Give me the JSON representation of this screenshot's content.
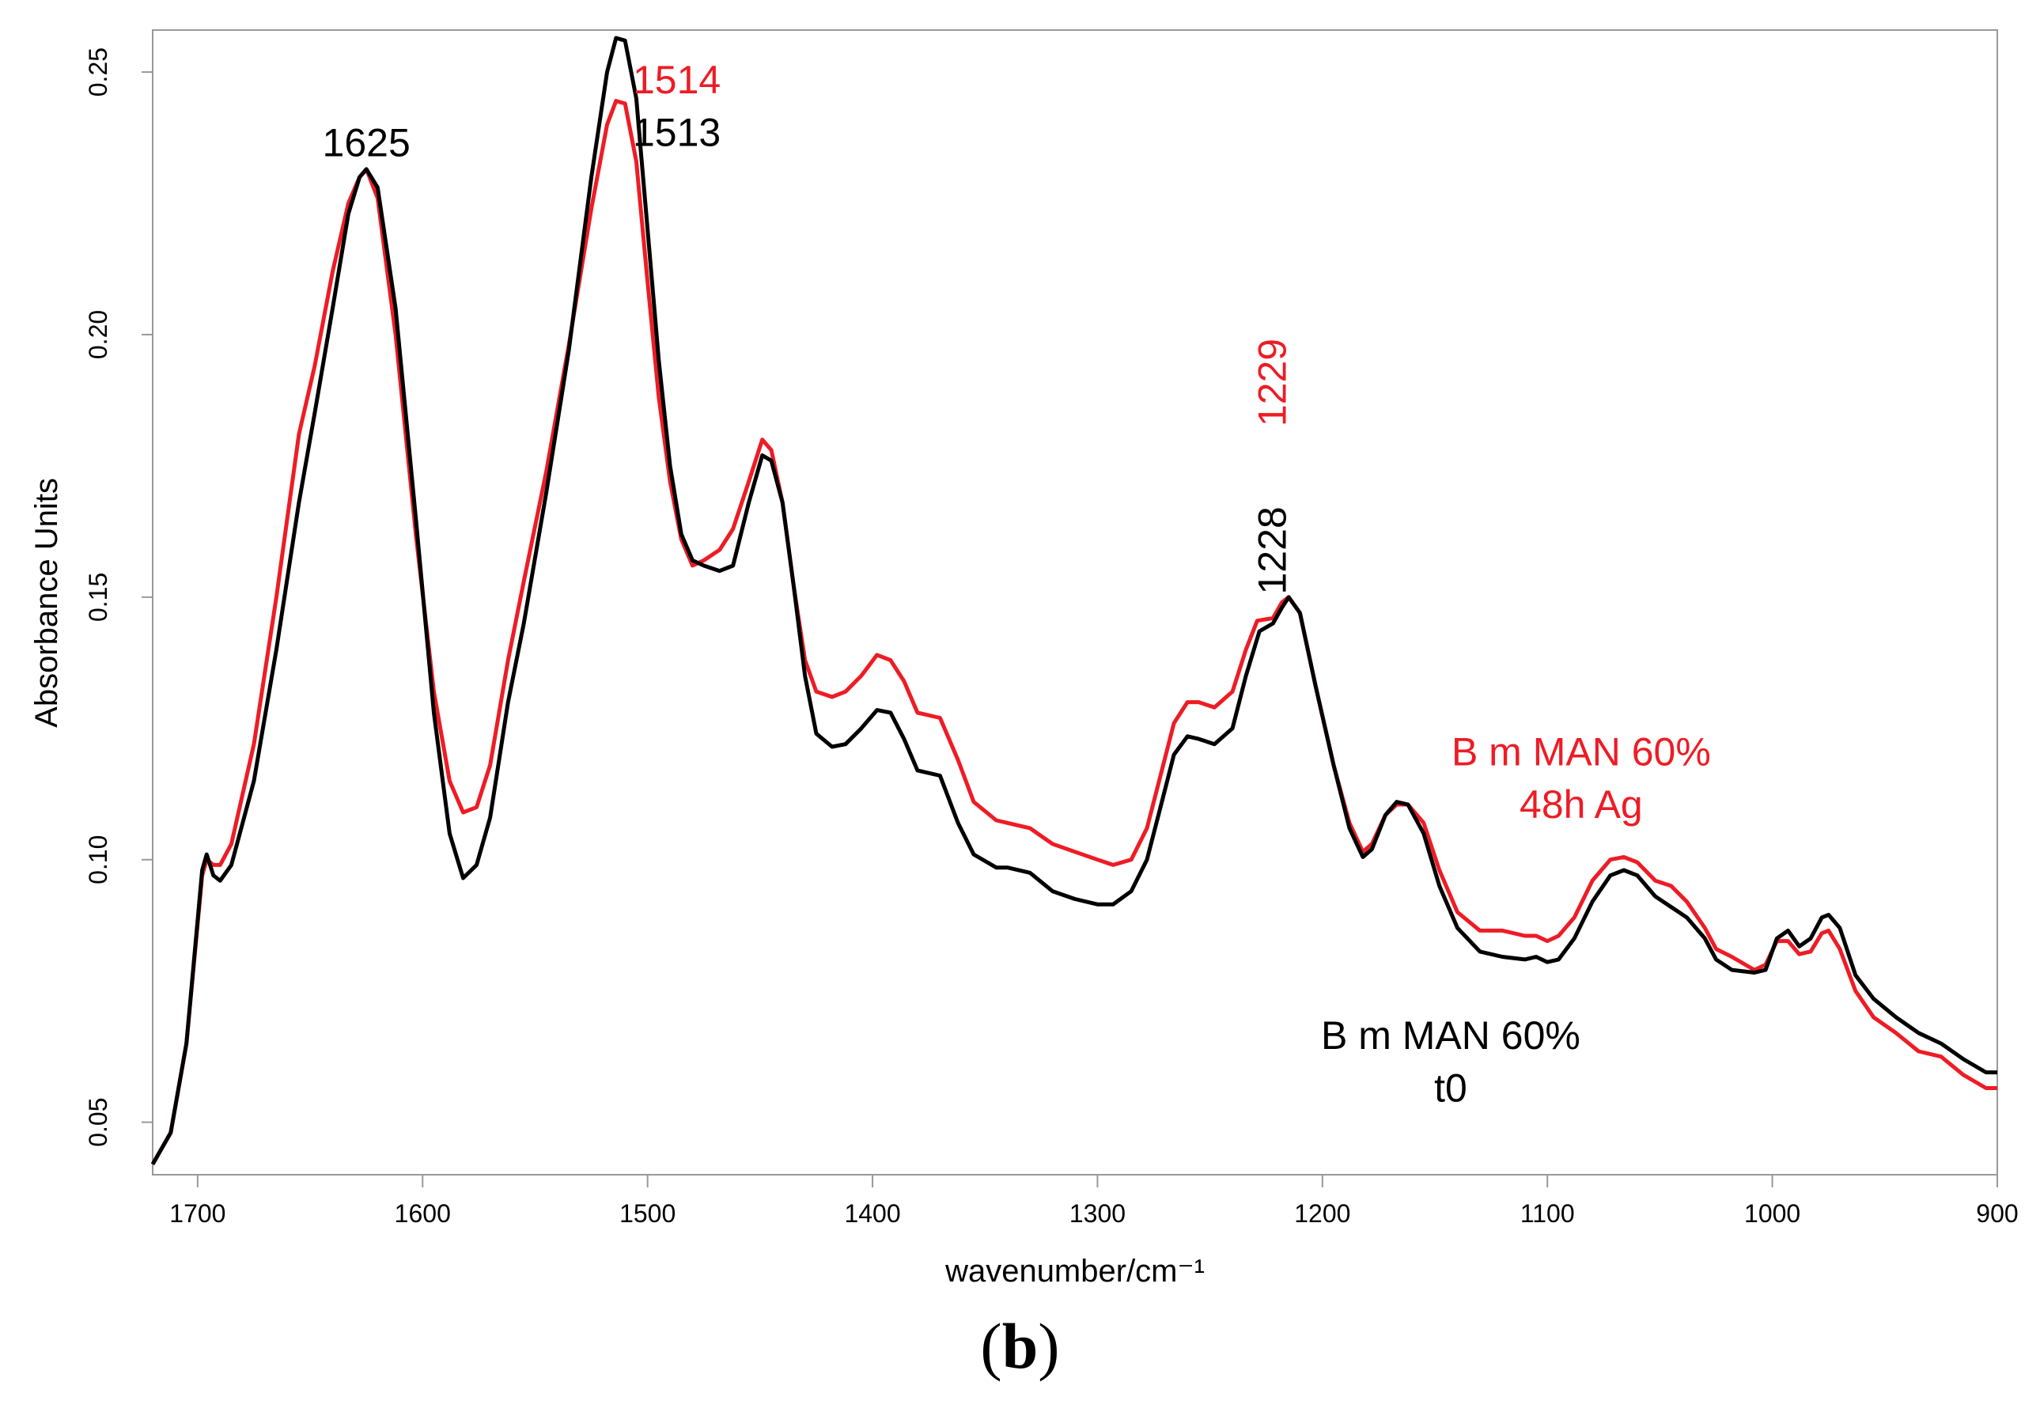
{
  "panel_label": {
    "open": "(",
    "letter": "b",
    "close": ")"
  },
  "chart_data": {
    "type": "line",
    "title": "",
    "xlabel": "wavenumber/cm⁻¹",
    "ylabel": "Absorbance Units",
    "xlim": [
      1720,
      900
    ],
    "ylim": [
      0.04,
      0.258
    ],
    "xticks": [
      1700,
      1600,
      1500,
      1400,
      1300,
      1200,
      1100,
      1000,
      900
    ],
    "yticks": [
      0.05,
      0.1,
      0.15,
      0.2,
      0.25
    ],
    "ytick_labels": [
      "0.05",
      "0.10",
      "0.15",
      "0.20",
      "0.25"
    ],
    "grid": false,
    "series": [
      {
        "name": "B m MAN 60% t0",
        "color": "#000000",
        "points": [
          [
            1720,
            0.042
          ],
          [
            1712,
            0.048
          ],
          [
            1705,
            0.065
          ],
          [
            1698,
            0.098
          ],
          [
            1696,
            0.101
          ],
          [
            1693,
            0.097
          ],
          [
            1690,
            0.096
          ],
          [
            1685,
            0.099
          ],
          [
            1675,
            0.115
          ],
          [
            1665,
            0.14
          ],
          [
            1655,
            0.168
          ],
          [
            1648,
            0.185
          ],
          [
            1640,
            0.205
          ],
          [
            1633,
            0.223
          ],
          [
            1628,
            0.23
          ],
          [
            1625,
            0.2315
          ],
          [
            1620,
            0.228
          ],
          [
            1612,
            0.205
          ],
          [
            1603,
            0.165
          ],
          [
            1595,
            0.128
          ],
          [
            1588,
            0.105
          ],
          [
            1582,
            0.0965
          ],
          [
            1576,
            0.099
          ],
          [
            1570,
            0.108
          ],
          [
            1562,
            0.13
          ],
          [
            1555,
            0.145
          ],
          [
            1545,
            0.17
          ],
          [
            1535,
            0.197
          ],
          [
            1525,
            0.23
          ],
          [
            1518,
            0.25
          ],
          [
            1514,
            0.2565
          ],
          [
            1510,
            0.256
          ],
          [
            1505,
            0.245
          ],
          [
            1500,
            0.22
          ],
          [
            1495,
            0.195
          ],
          [
            1490,
            0.175
          ],
          [
            1485,
            0.162
          ],
          [
            1480,
            0.157
          ],
          [
            1475,
            0.156
          ],
          [
            1468,
            0.155
          ],
          [
            1462,
            0.156
          ],
          [
            1455,
            0.168
          ],
          [
            1449,
            0.177
          ],
          [
            1445,
            0.176
          ],
          [
            1440,
            0.168
          ],
          [
            1435,
            0.152
          ],
          [
            1430,
            0.135
          ],
          [
            1425,
            0.124
          ],
          [
            1418,
            0.1215
          ],
          [
            1412,
            0.122
          ],
          [
            1405,
            0.125
          ],
          [
            1398,
            0.1285
          ],
          [
            1392,
            0.128
          ],
          [
            1386,
            0.123
          ],
          [
            1380,
            0.117
          ],
          [
            1370,
            0.116
          ],
          [
            1362,
            0.107
          ],
          [
            1355,
            0.101
          ],
          [
            1345,
            0.0985
          ],
          [
            1340,
            0.0985
          ],
          [
            1330,
            0.0975
          ],
          [
            1320,
            0.094
          ],
          [
            1310,
            0.0925
          ],
          [
            1300,
            0.0915
          ],
          [
            1293,
            0.0915
          ],
          [
            1285,
            0.094
          ],
          [
            1278,
            0.1
          ],
          [
            1272,
            0.11
          ],
          [
            1266,
            0.12
          ],
          [
            1260,
            0.1235
          ],
          [
            1255,
            0.123
          ],
          [
            1248,
            0.122
          ],
          [
            1240,
            0.125
          ],
          [
            1234,
            0.135
          ],
          [
            1228,
            0.1435
          ],
          [
            1222,
            0.145
          ],
          [
            1218,
            0.148
          ],
          [
            1215,
            0.15
          ],
          [
            1210,
            0.147
          ],
          [
            1203,
            0.133
          ],
          [
            1195,
            0.118
          ],
          [
            1188,
            0.106
          ],
          [
            1182,
            0.1005
          ],
          [
            1178,
            0.102
          ],
          [
            1172,
            0.1085
          ],
          [
            1167,
            0.111
          ],
          [
            1162,
            0.1105
          ],
          [
            1155,
            0.105
          ],
          [
            1148,
            0.095
          ],
          [
            1140,
            0.087
          ],
          [
            1130,
            0.0825
          ],
          [
            1120,
            0.0815
          ],
          [
            1110,
            0.081
          ],
          [
            1105,
            0.0815
          ],
          [
            1100,
            0.0805
          ],
          [
            1095,
            0.081
          ],
          [
            1088,
            0.085
          ],
          [
            1080,
            0.092
          ],
          [
            1072,
            0.097
          ],
          [
            1066,
            0.098
          ],
          [
            1060,
            0.097
          ],
          [
            1052,
            0.093
          ],
          [
            1045,
            0.091
          ],
          [
            1038,
            0.089
          ],
          [
            1030,
            0.085
          ],
          [
            1025,
            0.081
          ],
          [
            1018,
            0.079
          ],
          [
            1008,
            0.0785
          ],
          [
            1003,
            0.079
          ],
          [
            998,
            0.085
          ],
          [
            993,
            0.0865
          ],
          [
            988,
            0.0835
          ],
          [
            983,
            0.085
          ],
          [
            978,
            0.089
          ],
          [
            975,
            0.0895
          ],
          [
            970,
            0.087
          ],
          [
            963,
            0.078
          ],
          [
            955,
            0.0735
          ],
          [
            945,
            0.07
          ],
          [
            935,
            0.067
          ],
          [
            925,
            0.065
          ],
          [
            915,
            0.062
          ],
          [
            905,
            0.0595
          ],
          [
            900,
            0.0595
          ]
        ]
      },
      {
        "name": "B m MAN 60% 48h Ag",
        "color": "#ee1c25",
        "points": [
          [
            1720,
            0.042
          ],
          [
            1712,
            0.048
          ],
          [
            1705,
            0.065
          ],
          [
            1698,
            0.097
          ],
          [
            1696,
            0.1
          ],
          [
            1693,
            0.099
          ],
          [
            1690,
            0.099
          ],
          [
            1685,
            0.103
          ],
          [
            1675,
            0.122
          ],
          [
            1665,
            0.15
          ],
          [
            1655,
            0.181
          ],
          [
            1648,
            0.194
          ],
          [
            1640,
            0.212
          ],
          [
            1633,
            0.225
          ],
          [
            1628,
            0.23
          ],
          [
            1625,
            0.2315
          ],
          [
            1620,
            0.226
          ],
          [
            1612,
            0.2
          ],
          [
            1603,
            0.162
          ],
          [
            1595,
            0.132
          ],
          [
            1588,
            0.115
          ],
          [
            1582,
            0.109
          ],
          [
            1576,
            0.11
          ],
          [
            1570,
            0.118
          ],
          [
            1562,
            0.138
          ],
          [
            1555,
            0.153
          ],
          [
            1545,
            0.174
          ],
          [
            1535,
            0.198
          ],
          [
            1525,
            0.224
          ],
          [
            1518,
            0.24
          ],
          [
            1514,
            0.2445
          ],
          [
            1510,
            0.244
          ],
          [
            1505,
            0.233
          ],
          [
            1500,
            0.21
          ],
          [
            1495,
            0.188
          ],
          [
            1490,
            0.172
          ],
          [
            1485,
            0.161
          ],
          [
            1480,
            0.156
          ],
          [
            1475,
            0.157
          ],
          [
            1468,
            0.159
          ],
          [
            1462,
            0.163
          ],
          [
            1455,
            0.172
          ],
          [
            1449,
            0.18
          ],
          [
            1445,
            0.178
          ],
          [
            1440,
            0.168
          ],
          [
            1435,
            0.152
          ],
          [
            1430,
            0.138
          ],
          [
            1425,
            0.132
          ],
          [
            1418,
            0.131
          ],
          [
            1412,
            0.132
          ],
          [
            1405,
            0.135
          ],
          [
            1398,
            0.139
          ],
          [
            1392,
            0.138
          ],
          [
            1386,
            0.134
          ],
          [
            1380,
            0.128
          ],
          [
            1370,
            0.127
          ],
          [
            1362,
            0.119
          ],
          [
            1355,
            0.111
          ],
          [
            1345,
            0.1075
          ],
          [
            1340,
            0.107
          ],
          [
            1330,
            0.106
          ],
          [
            1320,
            0.103
          ],
          [
            1310,
            0.1015
          ],
          [
            1300,
            0.1
          ],
          [
            1293,
            0.099
          ],
          [
            1285,
            0.1
          ],
          [
            1278,
            0.106
          ],
          [
            1272,
            0.116
          ],
          [
            1266,
            0.126
          ],
          [
            1260,
            0.13
          ],
          [
            1255,
            0.13
          ],
          [
            1248,
            0.129
          ],
          [
            1240,
            0.132
          ],
          [
            1234,
            0.14
          ],
          [
            1229,
            0.1455
          ],
          [
            1222,
            0.146
          ],
          [
            1218,
            0.149
          ],
          [
            1215,
            0.15
          ],
          [
            1210,
            0.147
          ],
          [
            1203,
            0.133
          ],
          [
            1195,
            0.118
          ],
          [
            1188,
            0.107
          ],
          [
            1182,
            0.1015
          ],
          [
            1178,
            0.103
          ],
          [
            1172,
            0.1085
          ],
          [
            1167,
            0.1105
          ],
          [
            1162,
            0.1105
          ],
          [
            1155,
            0.107
          ],
          [
            1148,
            0.098
          ],
          [
            1140,
            0.09
          ],
          [
            1130,
            0.0865
          ],
          [
            1120,
            0.0865
          ],
          [
            1110,
            0.0855
          ],
          [
            1105,
            0.0855
          ],
          [
            1100,
            0.0845
          ],
          [
            1095,
            0.0855
          ],
          [
            1088,
            0.089
          ],
          [
            1080,
            0.096
          ],
          [
            1072,
            0.1
          ],
          [
            1066,
            0.1005
          ],
          [
            1060,
            0.0995
          ],
          [
            1052,
            0.096
          ],
          [
            1045,
            0.095
          ],
          [
            1038,
            0.092
          ],
          [
            1030,
            0.087
          ],
          [
            1025,
            0.083
          ],
          [
            1018,
            0.0815
          ],
          [
            1008,
            0.079
          ],
          [
            1003,
            0.08
          ],
          [
            998,
            0.0845
          ],
          [
            993,
            0.0845
          ],
          [
            988,
            0.082
          ],
          [
            983,
            0.0825
          ],
          [
            978,
            0.086
          ],
          [
            975,
            0.0865
          ],
          [
            970,
            0.083
          ],
          [
            963,
            0.075
          ],
          [
            955,
            0.07
          ],
          [
            945,
            0.067
          ],
          [
            935,
            0.0635
          ],
          [
            925,
            0.0625
          ],
          [
            915,
            0.059
          ],
          [
            905,
            0.0565
          ],
          [
            900,
            0.0565
          ]
        ]
      }
    ],
    "annotations": [
      {
        "id": "ann-1625",
        "text": "1625",
        "color": "#000000",
        "x": 1625,
        "y": 0.2365,
        "rotate": false
      },
      {
        "id": "ann-1514",
        "text": "1514",
        "color": "#ee1c25",
        "x": 1487,
        "y": 0.2485,
        "rotate": false
      },
      {
        "id": "ann-1513",
        "text": "1513",
        "color": "#000000",
        "x": 1487,
        "y": 0.2385,
        "rotate": false
      },
      {
        "id": "ann-1228",
        "text": "1228",
        "color": "#000000",
        "x": 1222,
        "y": 0.1505,
        "rotate": true
      },
      {
        "id": "ann-1229",
        "text": "1229",
        "color": "#ee1c25",
        "x": 1222,
        "y": 0.1825,
        "rotate": true
      },
      {
        "id": "ann-red-line1",
        "text": "B m MAN 60%",
        "color": "#ee1c25",
        "x": 1085,
        "y": 0.1205,
        "rotate": false
      },
      {
        "id": "ann-red-line2",
        "text": "48h Ag",
        "color": "#ee1c25",
        "x": 1085,
        "y": 0.1105,
        "rotate": false
      },
      {
        "id": "ann-black-line1",
        "text": "B m MAN 60%",
        "color": "#000000",
        "x": 1143,
        "y": 0.0665,
        "rotate": false
      },
      {
        "id": "ann-black-line2",
        "text": "t0",
        "color": "#000000",
        "x": 1143,
        "y": 0.0565,
        "rotate": false
      }
    ]
  }
}
